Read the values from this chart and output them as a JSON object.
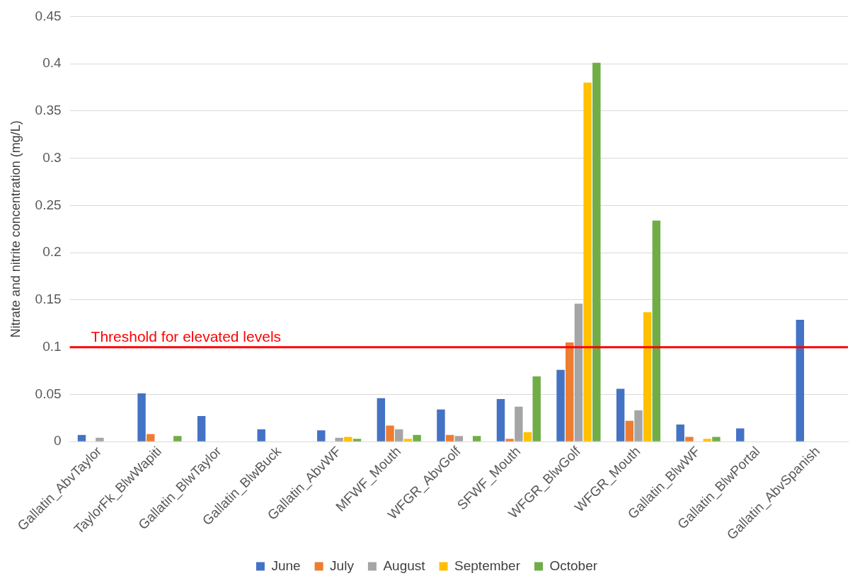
{
  "chart_data": {
    "type": "bar",
    "ylabel": "Nitrate and nitrite concentration (mg/L)",
    "categories": [
      "Gallatin_AbvTaylor",
      "TaylorFk_BlwWapiti",
      "Gallatin_BlwTaylor",
      "Gallatin_BlwBuck",
      "Gallatin_AbvWF",
      "MFWF_Mouth",
      "WFGR_AbvGolf",
      "SFWF_Mouth",
      "WFGR_BlwGolf",
      "WFGR_Mouth",
      "Gallatin_BlwWF",
      "Gallatin_BlwPortal",
      "Gallatin_AbvSpanish"
    ],
    "series": [
      {
        "name": "June",
        "color": "#4472c4",
        "values": [
          0.007,
          0.051,
          0.027,
          0.013,
          0.012,
          0.046,
          0.034,
          0.045,
          0.076,
          0.056,
          0.018,
          0.014,
          0.129
        ]
      },
      {
        "name": "July",
        "color": "#ed7d31",
        "values": [
          null,
          0.008,
          null,
          null,
          null,
          0.017,
          0.007,
          0.003,
          0.105,
          0.022,
          0.005,
          null,
          null
        ]
      },
      {
        "name": "August",
        "color": "#a5a5a5",
        "values": [
          0.004,
          null,
          null,
          null,
          0.004,
          0.013,
          0.006,
          0.037,
          0.146,
          0.033,
          null,
          null,
          null
        ]
      },
      {
        "name": "September",
        "color": "#ffc000",
        "values": [
          null,
          null,
          null,
          null,
          0.005,
          0.003,
          null,
          0.01,
          0.38,
          0.137,
          0.003,
          null,
          null
        ]
      },
      {
        "name": "October",
        "color": "#70ad47",
        "values": [
          null,
          0.006,
          null,
          null,
          0.003,
          0.007,
          0.006,
          0.069,
          0.401,
          0.234,
          0.005,
          null,
          null
        ]
      }
    ],
    "ylim": [
      0,
      0.45
    ],
    "yticks": [
      0,
      0.05,
      0.1,
      0.15,
      0.2,
      0.25,
      0.3,
      0.35,
      0.4,
      0.45
    ],
    "grid": "y",
    "legend": "bottom",
    "ref_lines": [
      {
        "axis": "y",
        "value": 0.1,
        "label": "Threshold for elevated levels",
        "color": "#ff0000"
      }
    ]
  }
}
